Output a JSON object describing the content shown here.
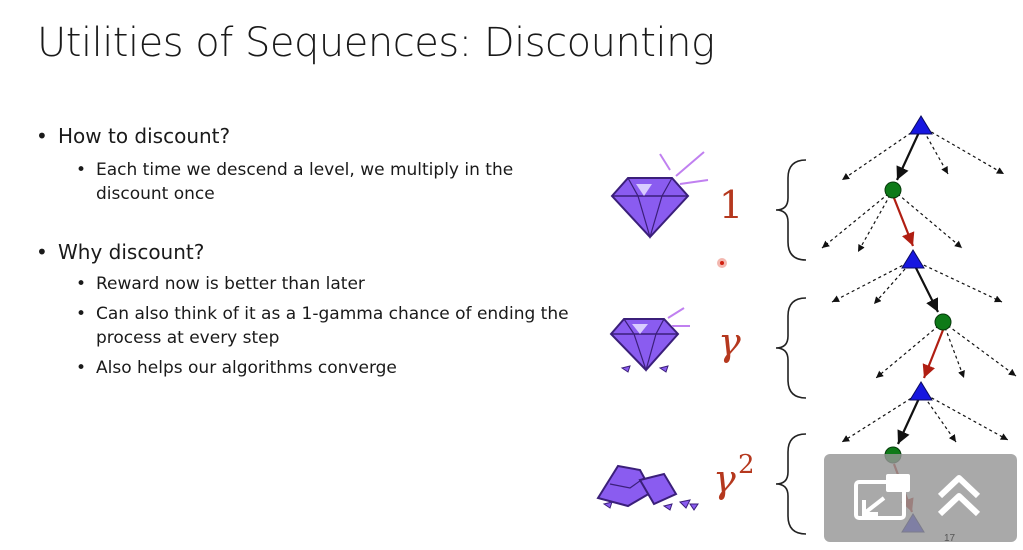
{
  "slide": {
    "title": "Utilities of Sequences: Discounting",
    "bullets": [
      {
        "text": "How to discount?",
        "sub": [
          "Each time we descend a level, we multiply in the discount once"
        ]
      },
      {
        "text": "Why discount?",
        "sub": [
          "Reward now is better than later",
          "Can also think of it as a 1-gamma chance of ending the process at every step",
          "Also helps our algorithms converge"
        ]
      }
    ]
  },
  "figure": {
    "labels": {
      "level1": "1",
      "level2": "γ",
      "level3_base": "γ",
      "level3_exp": "2"
    },
    "colors": {
      "label": "#b5381e",
      "gem": "#8a5cf0",
      "triangle": "#1717e0",
      "circle": "#0e7a18",
      "red_edge": "#b01e12"
    }
  },
  "overlay": {
    "icons": [
      "picture-in-picture-exit-icon",
      "double-chevron-up-icon"
    ]
  },
  "page_number": "17"
}
